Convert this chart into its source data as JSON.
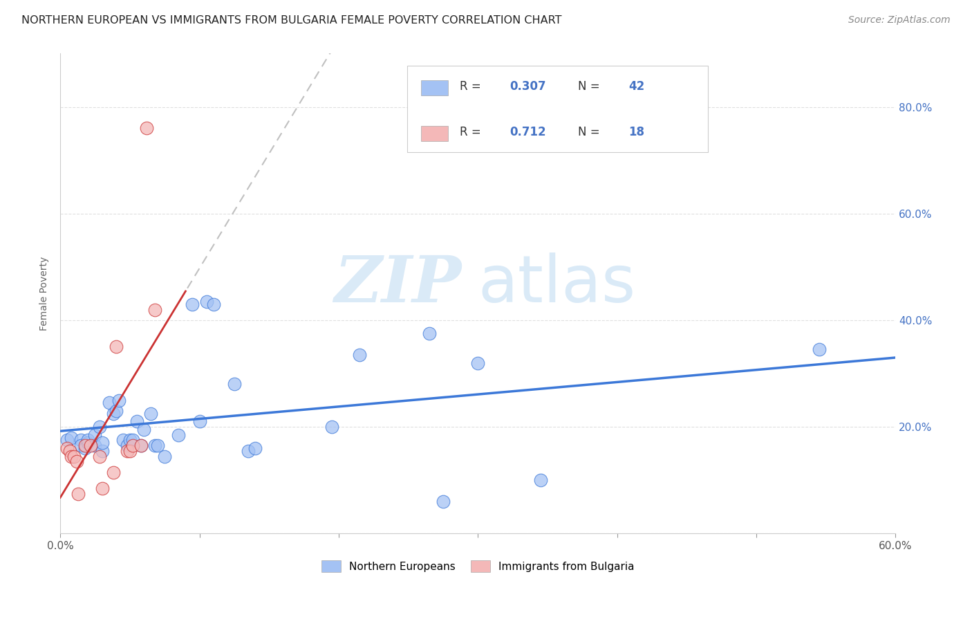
{
  "title": "NORTHERN EUROPEAN VS IMMIGRANTS FROM BULGARIA FEMALE POVERTY CORRELATION CHART",
  "source": "Source: ZipAtlas.com",
  "ylabel": "Female Poverty",
  "xlim": [
    0.0,
    0.6
  ],
  "ylim": [
    0.0,
    0.9
  ],
  "xticks": [
    0.0,
    0.1,
    0.2,
    0.3,
    0.4,
    0.5,
    0.6
  ],
  "xticklabels": [
    "0.0%",
    "",
    "",
    "",
    "",
    "",
    "60.0%"
  ],
  "yticks_right": [
    0.0,
    0.2,
    0.4,
    0.6,
    0.8
  ],
  "yticklabels_right": [
    "",
    "20.0%",
    "40.0%",
    "60.0%",
    "80.0%"
  ],
  "blue_color": "#a4c2f4",
  "pink_color": "#f4b8b8",
  "blue_line_color": "#3c78d8",
  "pink_line_color": "#cc3333",
  "dashed_color": "#c0c0c0",
  "legend_text_color": "#4472c4",
  "R_blue": "0.307",
  "N_blue": "42",
  "R_pink": "0.712",
  "N_pink": "18",
  "northern_europeans_x": [
    0.005,
    0.008,
    0.015,
    0.015,
    0.018,
    0.02,
    0.02,
    0.025,
    0.025,
    0.028,
    0.03,
    0.03,
    0.035,
    0.038,
    0.04,
    0.042,
    0.045,
    0.048,
    0.05,
    0.052,
    0.055,
    0.058,
    0.06,
    0.065,
    0.068,
    0.07,
    0.075,
    0.085,
    0.095,
    0.1,
    0.105,
    0.11,
    0.125,
    0.135,
    0.14,
    0.195,
    0.215,
    0.265,
    0.275,
    0.3,
    0.345,
    0.545
  ],
  "northern_europeans_y": [
    0.175,
    0.18,
    0.175,
    0.165,
    0.16,
    0.17,
    0.175,
    0.165,
    0.185,
    0.2,
    0.155,
    0.17,
    0.245,
    0.225,
    0.23,
    0.25,
    0.175,
    0.165,
    0.175,
    0.175,
    0.21,
    0.165,
    0.195,
    0.225,
    0.165,
    0.165,
    0.145,
    0.185,
    0.43,
    0.21,
    0.435,
    0.43,
    0.28,
    0.155,
    0.16,
    0.2,
    0.335,
    0.375,
    0.06,
    0.32,
    0.1,
    0.345
  ],
  "bulgaria_x": [
    0.005,
    0.007,
    0.008,
    0.01,
    0.012,
    0.013,
    0.018,
    0.022,
    0.028,
    0.03,
    0.038,
    0.04,
    0.048,
    0.05,
    0.052,
    0.058,
    0.062,
    0.068
  ],
  "bulgaria_y": [
    0.16,
    0.155,
    0.145,
    0.145,
    0.135,
    0.075,
    0.165,
    0.165,
    0.145,
    0.085,
    0.115,
    0.35,
    0.155,
    0.155,
    0.165,
    0.165,
    0.76,
    0.42
  ],
  "watermark_zip": "ZIP",
  "watermark_atlas": "atlas",
  "watermark_color": "#daeaf7",
  "background_color": "#ffffff",
  "grid_color": "#e0e0e0",
  "legend_bottom_labels": [
    "Northern Europeans",
    "Immigrants from Bulgaria"
  ]
}
